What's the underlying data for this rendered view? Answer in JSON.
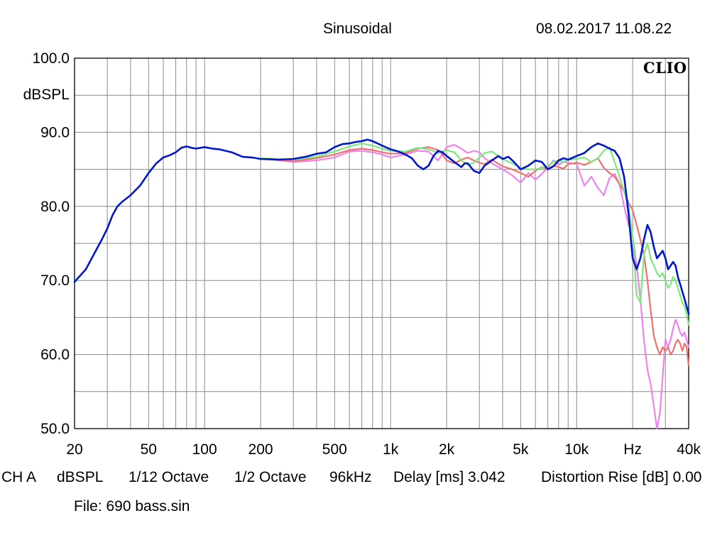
{
  "header": {
    "title": "Sinusoidal",
    "datetime": "08.02.2017 11.08.22",
    "logo": "CLIO"
  },
  "footer": {
    "channel": "CH A",
    "unit": "dBSPL",
    "smoothing": "1/12 Octave",
    "window": "1/2 Octave",
    "sample_rate": "96kHz",
    "delay": "Delay [ms] 3.042",
    "distortion": "Distortion Rise [dB] 0.00",
    "file": "File: 690 bass.sin"
  },
  "chart_data": {
    "type": "line",
    "x_scale": "log",
    "xlim": [
      20,
      40000
    ],
    "ylim": [
      50,
      100
    ],
    "ylabel": "dBSPL",
    "grid": true,
    "x_ticks": [
      {
        "value": 20,
        "label": "20"
      },
      {
        "value": 50,
        "label": "50"
      },
      {
        "value": 100,
        "label": "100"
      },
      {
        "value": 200,
        "label": "200"
      },
      {
        "value": 500,
        "label": "500"
      },
      {
        "value": 1000,
        "label": "1k"
      },
      {
        "value": 2000,
        "label": "2k"
      },
      {
        "value": 5000,
        "label": "5k"
      },
      {
        "value": 10000,
        "label": "10k"
      },
      {
        "value": 20000,
        "label": "Hz"
      },
      {
        "value": 40000,
        "label": "40k"
      }
    ],
    "y_ticks": [
      {
        "value": 100,
        "label": "100.0"
      },
      {
        "value": 90,
        "label": "90.0"
      },
      {
        "value": 80,
        "label": "80.0"
      },
      {
        "value": 70,
        "label": "70.0"
      },
      {
        "value": 60,
        "label": "60.0"
      },
      {
        "value": 50,
        "label": "50.0"
      }
    ],
    "series": [
      {
        "color": "#ee82ee",
        "x": [
          200,
          300,
          400,
          500,
          600,
          700,
          800,
          900,
          1000,
          1200,
          1400,
          1600,
          1800,
          1900,
          2000,
          2200,
          2400,
          2600,
          2800,
          3000,
          3200,
          3500,
          4000,
          4500,
          5000,
          5500,
          6000,
          6500,
          7000,
          7500,
          8000,
          8500,
          9000,
          10000,
          11000,
          12000,
          13000,
          14000,
          15000,
          16000,
          17000,
          18000,
          19000,
          20000,
          21000,
          22000,
          23000,
          24000,
          25000,
          26000,
          27000,
          28000,
          29000,
          30000,
          31000,
          32000,
          33000,
          34000,
          35000,
          36000,
          37000,
          38000,
          39000,
          40000
        ],
        "y": [
          86.5,
          86.0,
          86.2,
          86.6,
          87.4,
          87.5,
          87.3,
          87.0,
          86.6,
          87.0,
          87.5,
          87.4,
          86.2,
          87.1,
          88.0,
          88.3,
          87.8,
          87.2,
          87.5,
          87.3,
          86.5,
          85.8,
          85.0,
          84.2,
          83.2,
          84.5,
          83.6,
          84.4,
          85.2,
          86.2,
          85.6,
          86.0,
          85.9,
          85.7,
          82.8,
          84.0,
          82.5,
          81.5,
          83.8,
          84.4,
          83.0,
          80.0,
          77.5,
          76.0,
          72.0,
          67.5,
          62.0,
          58.0,
          56.0,
          53.0,
          50.0,
          52.0,
          57.0,
          62.0,
          61.0,
          62.0,
          63.5,
          64.7,
          64.0,
          63.0,
          62.5,
          63.0,
          62.0,
          61.0
        ]
      },
      {
        "color": "#f07070",
        "x": [
          200,
          300,
          400,
          500,
          600,
          700,
          800,
          900,
          1000,
          1200,
          1400,
          1600,
          1800,
          1900,
          2000,
          2200,
          2400,
          2600,
          2800,
          3000,
          3200,
          3500,
          4000,
          4500,
          5000,
          5500,
          6000,
          6500,
          7000,
          7500,
          8000,
          8500,
          9000,
          10000,
          11000,
          12000,
          13000,
          14000,
          15000,
          16000,
          17000,
          18000,
          19000,
          20000,
          21000,
          22000,
          23000,
          24000,
          25000,
          26000,
          27000,
          28000,
          29000,
          30000,
          31000,
          32000,
          33000,
          34000,
          35000,
          36000,
          37000,
          38000,
          39000,
          40000
        ],
        "y": [
          86.5,
          86.1,
          86.5,
          87.0,
          87.6,
          87.8,
          87.6,
          87.3,
          87.1,
          87.2,
          87.8,
          88.0,
          87.6,
          87.0,
          86.2,
          85.8,
          86.3,
          86.6,
          86.2,
          85.9,
          85.7,
          86.3,
          85.4,
          85.0,
          84.5,
          84.0,
          84.8,
          85.3,
          85.0,
          85.5,
          85.3,
          85.1,
          85.7,
          85.9,
          85.6,
          86.0,
          86.5,
          85.2,
          84.5,
          84.0,
          83.0,
          82.0,
          80.5,
          79.5,
          77.5,
          75.5,
          73.5,
          70.0,
          66.0,
          62.5,
          61.0,
          60.0,
          61.0,
          60.5,
          61.0,
          60.0,
          60.5,
          61.5,
          62.0,
          61.5,
          60.5,
          61.5,
          61.0,
          58.5
        ]
      },
      {
        "color": "#7de87d",
        "x": [
          200,
          300,
          400,
          500,
          600,
          700,
          800,
          900,
          1000,
          1200,
          1400,
          1600,
          1800,
          1900,
          2000,
          2200,
          2400,
          2600,
          2800,
          3000,
          3200,
          3500,
          4000,
          4500,
          5000,
          5500,
          6000,
          6500,
          7000,
          7500,
          8000,
          8500,
          9000,
          10000,
          11000,
          12000,
          13000,
          14000,
          15000,
          16000,
          17000,
          18000,
          19000,
          20000,
          21000,
          22000,
          23000,
          24000,
          25000,
          26000,
          27000,
          28000,
          29000,
          30000,
          31000,
          32000,
          33000,
          34000,
          35000,
          36000,
          37000,
          38000,
          39000,
          40000
        ],
        "y": [
          86.5,
          86.3,
          86.7,
          87.4,
          88.1,
          88.5,
          88.2,
          87.8,
          87.5,
          87.4,
          87.9,
          87.7,
          87.2,
          87.4,
          87.6,
          87.3,
          86.2,
          85.6,
          85.9,
          86.6,
          87.2,
          87.4,
          86.4,
          85.8,
          85.2,
          85.0,
          85.0,
          85.2,
          85.5,
          86.0,
          86.2,
          86.0,
          86.3,
          86.4,
          86.6,
          86.0,
          86.5,
          87.5,
          88.0,
          86.0,
          84.0,
          82.0,
          80.0,
          76.0,
          68.0,
          67.0,
          73.5,
          75.0,
          73.0,
          72.0,
          71.0,
          70.5,
          71.0,
          70.0,
          69.0,
          69.5,
          70.5,
          70.0,
          69.0,
          68.0,
          67.0,
          66.5,
          65.5,
          64.0
        ]
      },
      {
        "color": "#0018cc",
        "x": [
          20,
          23,
          26,
          28,
          30,
          32,
          34,
          36,
          40,
          45,
          50,
          55,
          60,
          65,
          70,
          75,
          80,
          85,
          90,
          100,
          110,
          120,
          140,
          160,
          180,
          200,
          250,
          300,
          350,
          400,
          450,
          500,
          550,
          600,
          650,
          700,
          750,
          800,
          850,
          900,
          1000,
          1100,
          1200,
          1300,
          1400,
          1500,
          1600,
          1700,
          1800,
          1900,
          2000,
          2200,
          2400,
          2500,
          2600,
          2800,
          3000,
          3200,
          3500,
          3800,
          4000,
          4300,
          4600,
          5000,
          5500,
          6000,
          6500,
          7000,
          7500,
          8000,
          8500,
          9000,
          10000,
          11000,
          12000,
          13000,
          14000,
          15000,
          16000,
          17000,
          18000,
          19000,
          20000,
          21000,
          22000,
          23000,
          24000,
          25000,
          26000,
          27000,
          28000,
          29000,
          30000,
          31000,
          32000,
          33000,
          34000,
          35000,
          36000,
          37000,
          38000,
          39000,
          40000
        ],
        "y": [
          69.8,
          71.5,
          74.0,
          75.5,
          77.0,
          78.8,
          80.0,
          80.6,
          81.5,
          82.8,
          84.5,
          85.8,
          86.6,
          86.9,
          87.3,
          87.9,
          88.1,
          87.9,
          87.8,
          88.0,
          87.8,
          87.7,
          87.3,
          86.7,
          86.6,
          86.4,
          86.3,
          86.4,
          86.7,
          87.1,
          87.3,
          88.0,
          88.4,
          88.5,
          88.7,
          88.8,
          89.0,
          88.8,
          88.5,
          88.2,
          87.7,
          87.4,
          87.0,
          86.5,
          85.5,
          85.0,
          85.5,
          86.8,
          87.5,
          87.3,
          86.8,
          86.0,
          85.3,
          85.8,
          85.8,
          84.8,
          84.5,
          85.5,
          86.2,
          86.8,
          86.4,
          86.7,
          86.0,
          85.0,
          85.5,
          86.2,
          86.0,
          85.0,
          85.4,
          86.2,
          86.5,
          86.3,
          86.8,
          87.2,
          88.0,
          88.5,
          88.2,
          87.8,
          87.5,
          86.5,
          84.0,
          79.0,
          73.0,
          71.5,
          73.0,
          75.5,
          77.5,
          76.5,
          74.5,
          73.0,
          73.5,
          74.0,
          73.0,
          71.5,
          72.0,
          72.5,
          72.0,
          70.5,
          69.5,
          68.5,
          67.5,
          66.5,
          65.5
        ]
      }
    ]
  }
}
